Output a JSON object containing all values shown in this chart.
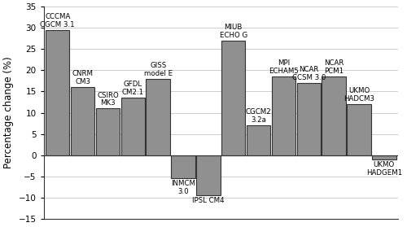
{
  "categories": [
    "CCCMA\nCGCM 3.1",
    "CNRM\nCM3",
    "CSIRO\nMK3",
    "GFDL\nCM2.1",
    "GISS\nmodel E",
    "INMCM\n3.0",
    "IPSL CM4",
    "MIUB\nECHO G",
    "CGCM2\n3.2a",
    "MPI\nECHAM5",
    "NCAR\nCCSM 3.0",
    "NCAR\nPCM1",
    "UKMO\nHADCM3",
    "UKMO\nHADGEM1"
  ],
  "values": [
    29.5,
    16.0,
    11.0,
    13.5,
    18.0,
    -5.5,
    -9.5,
    27.0,
    7.0,
    18.5,
    17.0,
    18.5,
    12.0,
    -1.0
  ],
  "bar_color": "#909090",
  "bar_edge_color": "#333333",
  "ylim": [
    -15,
    35
  ],
  "yticks": [
    -15,
    -10,
    -5,
    0,
    5,
    10,
    15,
    20,
    25,
    30,
    35
  ],
  "ylabel": "Percentage change (%)",
  "background_color": "#ffffff",
  "label_fontsize": 6.2,
  "ylabel_fontsize": 8.5
}
